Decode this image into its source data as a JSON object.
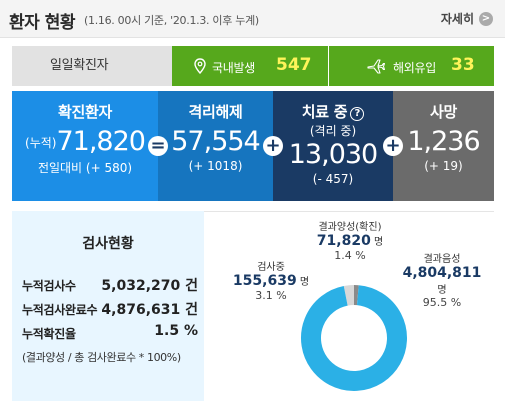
{
  "header": {
    "title": "환자 현황",
    "subtitle": "(1.16. 00시 기준, '20.1.3. 이후 누계)",
    "detail_label": "자세히"
  },
  "daily": {
    "label": "일일확진자",
    "domestic": {
      "label": "국내발생",
      "value": "547",
      "icon": "location-pin-icon"
    },
    "imported": {
      "label": "해외유입",
      "value": "33",
      "icon": "airplane-icon"
    },
    "accent": "#56a81c"
  },
  "stats": {
    "confirmed": {
      "title": "확진환자",
      "prefix": "(누적)",
      "value": "71,820",
      "sub": "전일대비 (+ 580)",
      "color": "#1c8ee6"
    },
    "released": {
      "title": "격리해제",
      "value": "57,554",
      "sub": "(+ 1018)",
      "color": "#1675bf"
    },
    "treating": {
      "title": "치료 중",
      "title2": "(격리 중)",
      "value": "13,030",
      "sub": "(- 457)",
      "color": "#1a3a64"
    },
    "deaths": {
      "title": "사망",
      "value": "1,236",
      "sub": "(+ 19)",
      "color": "#6b6b6b"
    },
    "symbols": {
      "eq": "=",
      "plus": "+"
    }
  },
  "tests": {
    "title": "검사현황",
    "rows": [
      {
        "label": "누적검사수",
        "value": "5,032,270 건"
      },
      {
        "label": "누적검사완료수",
        "value": "4,876,631 건"
      },
      {
        "label": "누적확진율",
        "value": "1.5 %"
      }
    ],
    "note": "(결과양성 / 총 검사완료수 * 100%)"
  },
  "chart_data": {
    "type": "pie",
    "categories": [
      "검사중",
      "결과양성(확진)",
      "결과음성"
    ],
    "values": [
      155639,
      71820,
      4804811
    ],
    "percents": [
      3.1,
      1.4,
      95.5
    ],
    "unit": "명",
    "colors": [
      "#d8d8d8",
      "#8a8a8a",
      "#2bb0e6"
    ]
  }
}
